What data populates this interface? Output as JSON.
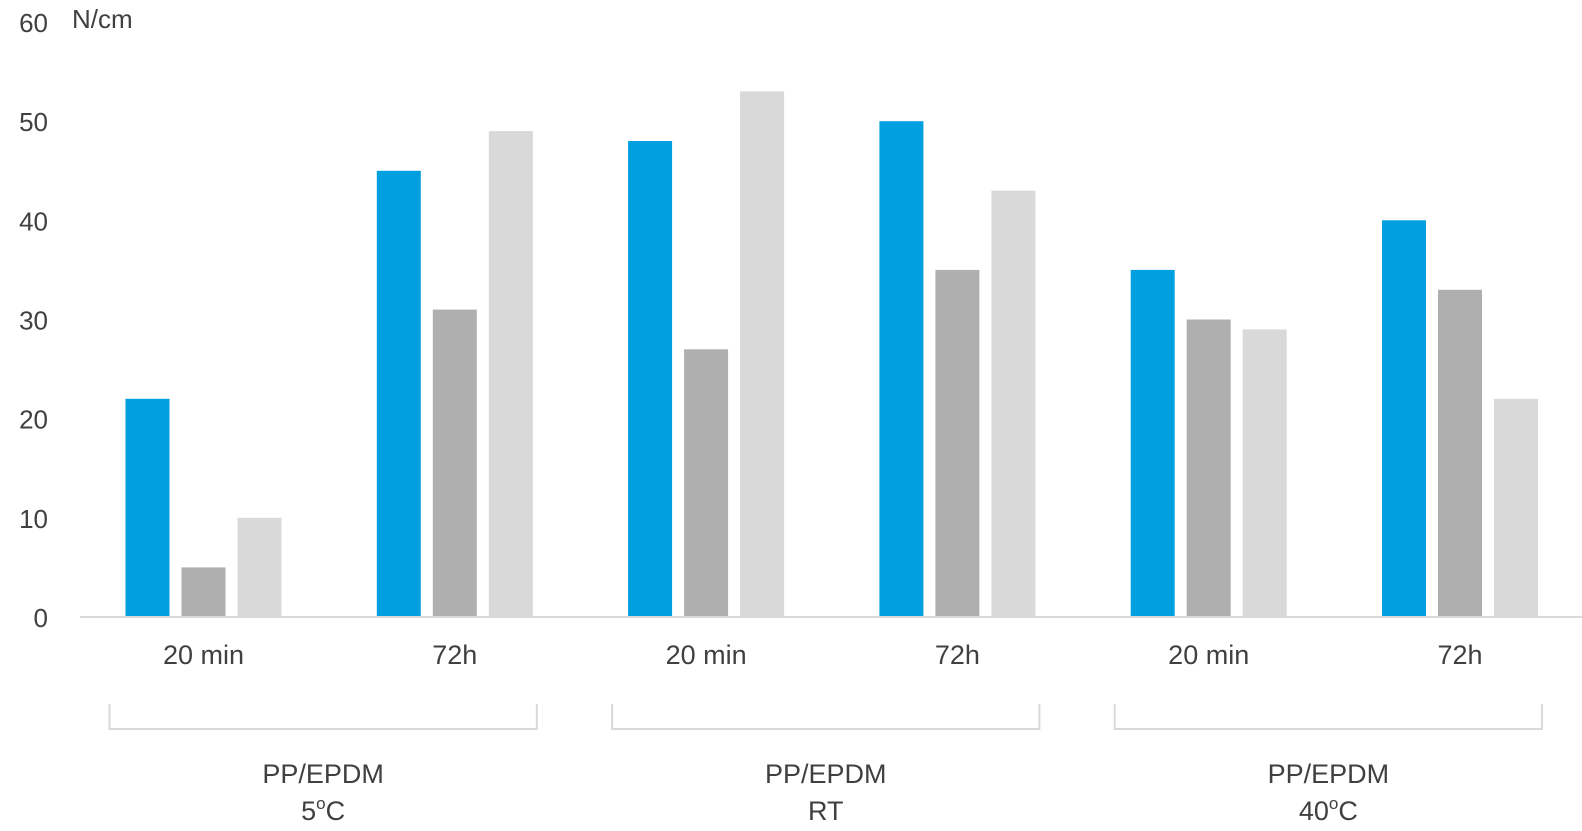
{
  "chart_data": {
    "type": "bar",
    "ylabel": "N/cm",
    "ylim": [
      0,
      60
    ],
    "yticks": [
      0,
      10,
      20,
      30,
      40,
      50,
      60
    ],
    "grid": false,
    "legend": "none",
    "categories": [
      "20 min",
      "72h",
      "20 min",
      "72h",
      "20 min",
      "72h"
    ],
    "groups": [
      {
        "line1": "PP/EPDM",
        "line2": "5",
        "sup": "o",
        "unit": "C"
      },
      {
        "line1": "PP/EPDM",
        "line2": "RT",
        "sup": "",
        "unit": ""
      },
      {
        "line1": "PP/EPDM",
        "line2": "40",
        "sup": "o",
        "unit": "C"
      }
    ],
    "series": [
      {
        "color": "#009fe0",
        "values": [
          22,
          45,
          48,
          50,
          35,
          40
        ]
      },
      {
        "color": "#afafaf",
        "values": [
          5,
          31,
          27,
          35,
          30,
          33
        ]
      },
      {
        "color": "#d9d9d9",
        "values": [
          10,
          49,
          53,
          43,
          29,
          22
        ]
      }
    ],
    "colors": {
      "axis": "#d9d9d9",
      "text": "#404040"
    }
  }
}
